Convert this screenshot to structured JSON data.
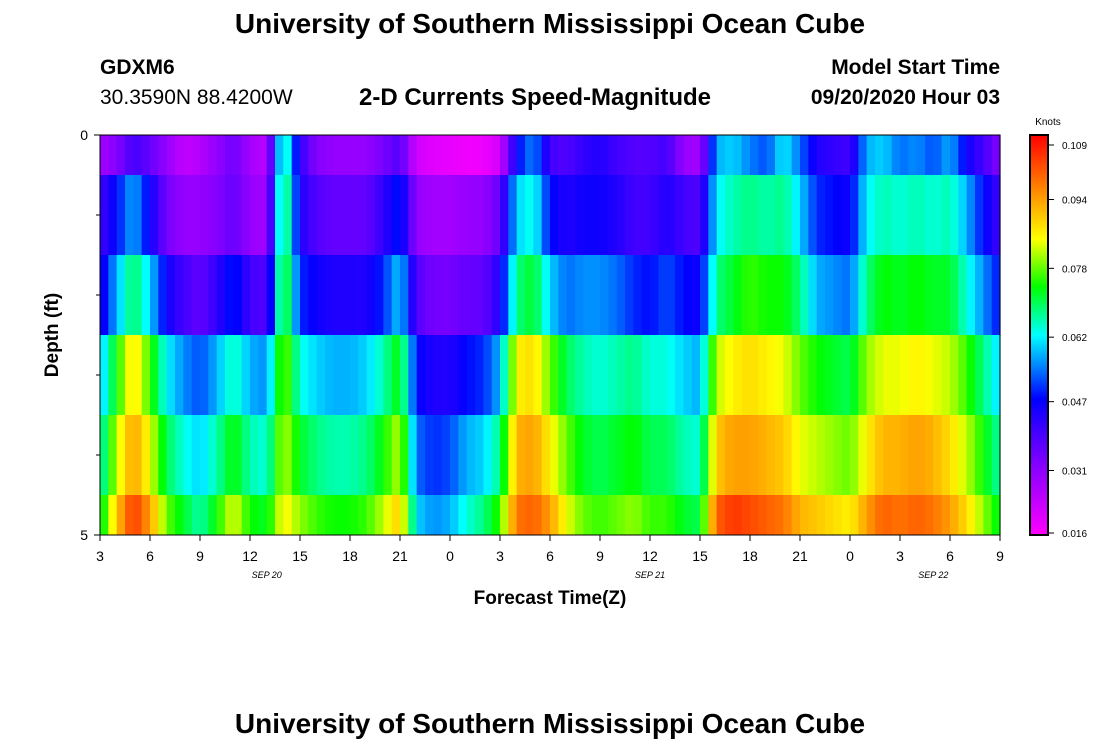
{
  "title_top": "University of Southern Mississippi Ocean Cube",
  "title_bottom": "University of Southern Mississippi Ocean Cube",
  "station": {
    "id": "GDXM6",
    "coords": "30.3590N 88.4200W"
  },
  "model": {
    "label": "Model Start Time",
    "time": "09/20/2020 Hour 03"
  },
  "colorbar": {
    "unit": "Knots",
    "ticks": [
      "0.109",
      "0.094",
      "0.078",
      "0.062",
      "0.047",
      "0.031",
      "0.016"
    ],
    "tick_values": [
      0.109,
      0.094,
      0.078,
      0.062,
      0.047,
      0.031,
      0.016
    ],
    "min": 0.016,
    "max": 0.109
  },
  "chart_data": {
    "type": "heatmap",
    "title": "2-D Currents Speed-Magnitude",
    "xlabel": "Forecast Time(Z)",
    "ylabel": "Depth (ft)",
    "ylim": [
      0,
      5
    ],
    "y_tick_labels": [
      "0",
      "5"
    ],
    "x_tick_labels": [
      "3",
      "6",
      "9",
      "12",
      "15",
      "18",
      "21",
      "0",
      "3",
      "6",
      "9",
      "12",
      "15",
      "18",
      "21",
      "0",
      "3",
      "6",
      "9"
    ],
    "x_tick_hours": [
      0,
      3,
      6,
      9,
      12,
      15,
      18,
      21,
      24,
      27,
      30,
      33,
      36,
      39,
      42,
      45,
      48,
      51,
      54
    ],
    "date_labels": [
      {
        "label": "SEP 20",
        "hour": 10
      },
      {
        "label": "SEP 21",
        "hour": 33
      },
      {
        "label": "SEP 22",
        "hour": 50
      }
    ],
    "xlim_hours": [
      0,
      54
    ],
    "depth_bins": 5,
    "column_step_hours": 0.5,
    "anchor_hours": [
      0,
      1,
      2,
      3,
      4,
      5,
      6,
      7,
      8,
      9,
      10,
      11,
      12,
      13,
      14,
      15,
      16,
      17,
      18,
      19,
      20,
      21,
      22,
      23,
      24,
      25,
      26,
      27,
      28,
      29,
      30,
      31,
      32,
      33,
      34,
      35,
      36,
      37,
      38,
      39,
      40,
      41,
      42,
      43,
      44,
      45,
      46,
      47,
      48,
      49,
      50,
      51,
      52,
      53,
      54
    ],
    "speed_rows": [
      [
        0.028,
        0.032,
        0.04,
        0.036,
        0.03,
        0.024,
        0.026,
        0.03,
        0.035,
        0.028,
        0.025,
        0.07,
        0.042,
        0.032,
        0.03,
        0.03,
        0.03,
        0.034,
        0.038,
        0.022,
        0.02,
        0.019,
        0.018,
        0.018,
        0.022,
        0.047,
        0.056,
        0.04,
        0.038,
        0.042,
        0.044,
        0.04,
        0.038,
        0.038,
        0.04,
        0.03,
        0.028,
        0.058,
        0.06,
        0.055,
        0.052,
        0.062,
        0.054,
        0.044,
        0.042,
        0.04,
        0.058,
        0.06,
        0.054,
        0.056,
        0.052,
        0.058,
        0.046,
        0.04,
        0.032
      ],
      [
        0.04,
        0.048,
        0.058,
        0.046,
        0.034,
        0.03,
        0.03,
        0.032,
        0.036,
        0.03,
        0.028,
        0.074,
        0.044,
        0.038,
        0.036,
        0.036,
        0.036,
        0.042,
        0.05,
        0.03,
        0.028,
        0.028,
        0.03,
        0.03,
        0.036,
        0.06,
        0.064,
        0.048,
        0.044,
        0.046,
        0.046,
        0.044,
        0.04,
        0.04,
        0.044,
        0.04,
        0.038,
        0.062,
        0.066,
        0.068,
        0.066,
        0.068,
        0.06,
        0.05,
        0.048,
        0.046,
        0.062,
        0.066,
        0.064,
        0.066,
        0.064,
        0.066,
        0.058,
        0.048,
        0.04
      ],
      [
        0.044,
        0.058,
        0.07,
        0.06,
        0.046,
        0.04,
        0.036,
        0.042,
        0.05,
        0.04,
        0.038,
        0.076,
        0.05,
        0.046,
        0.044,
        0.044,
        0.044,
        0.05,
        0.06,
        0.038,
        0.034,
        0.034,
        0.036,
        0.036,
        0.044,
        0.068,
        0.072,
        0.06,
        0.054,
        0.056,
        0.056,
        0.054,
        0.05,
        0.048,
        0.052,
        0.048,
        0.046,
        0.068,
        0.072,
        0.076,
        0.074,
        0.074,
        0.068,
        0.058,
        0.056,
        0.054,
        0.068,
        0.074,
        0.072,
        0.074,
        0.072,
        0.072,
        0.064,
        0.056,
        0.048
      ],
      [
        0.058,
        0.074,
        0.088,
        0.076,
        0.062,
        0.056,
        0.052,
        0.058,
        0.066,
        0.058,
        0.056,
        0.08,
        0.064,
        0.06,
        0.058,
        0.058,
        0.06,
        0.066,
        0.074,
        0.048,
        0.044,
        0.044,
        0.048,
        0.05,
        0.058,
        0.086,
        0.088,
        0.078,
        0.07,
        0.066,
        0.064,
        0.066,
        0.068,
        0.064,
        0.064,
        0.06,
        0.058,
        0.082,
        0.086,
        0.088,
        0.086,
        0.084,
        0.078,
        0.074,
        0.072,
        0.07,
        0.08,
        0.084,
        0.084,
        0.086,
        0.084,
        0.082,
        0.076,
        0.068,
        0.06
      ],
      [
        0.064,
        0.082,
        0.094,
        0.084,
        0.07,
        0.064,
        0.06,
        0.066,
        0.074,
        0.066,
        0.064,
        0.082,
        0.072,
        0.068,
        0.066,
        0.066,
        0.068,
        0.074,
        0.082,
        0.054,
        0.05,
        0.052,
        0.058,
        0.06,
        0.068,
        0.092,
        0.094,
        0.086,
        0.078,
        0.072,
        0.07,
        0.072,
        0.074,
        0.07,
        0.07,
        0.066,
        0.064,
        0.09,
        0.094,
        0.094,
        0.092,
        0.09,
        0.084,
        0.082,
        0.08,
        0.078,
        0.086,
        0.092,
        0.092,
        0.094,
        0.092,
        0.088,
        0.082,
        0.074,
        0.066
      ],
      [
        0.07,
        0.09,
        0.104,
        0.094,
        0.078,
        0.072,
        0.066,
        0.074,
        0.084,
        0.074,
        0.072,
        0.086,
        0.08,
        0.076,
        0.074,
        0.074,
        0.076,
        0.082,
        0.09,
        0.06,
        0.056,
        0.058,
        0.064,
        0.068,
        0.076,
        0.098,
        0.1,
        0.094,
        0.084,
        0.078,
        0.076,
        0.078,
        0.08,
        0.076,
        0.076,
        0.072,
        0.07,
        0.1,
        0.104,
        0.102,
        0.1,
        0.098,
        0.092,
        0.09,
        0.088,
        0.086,
        0.094,
        0.1,
        0.098,
        0.1,
        0.098,
        0.094,
        0.088,
        0.08,
        0.072
      ]
    ]
  }
}
